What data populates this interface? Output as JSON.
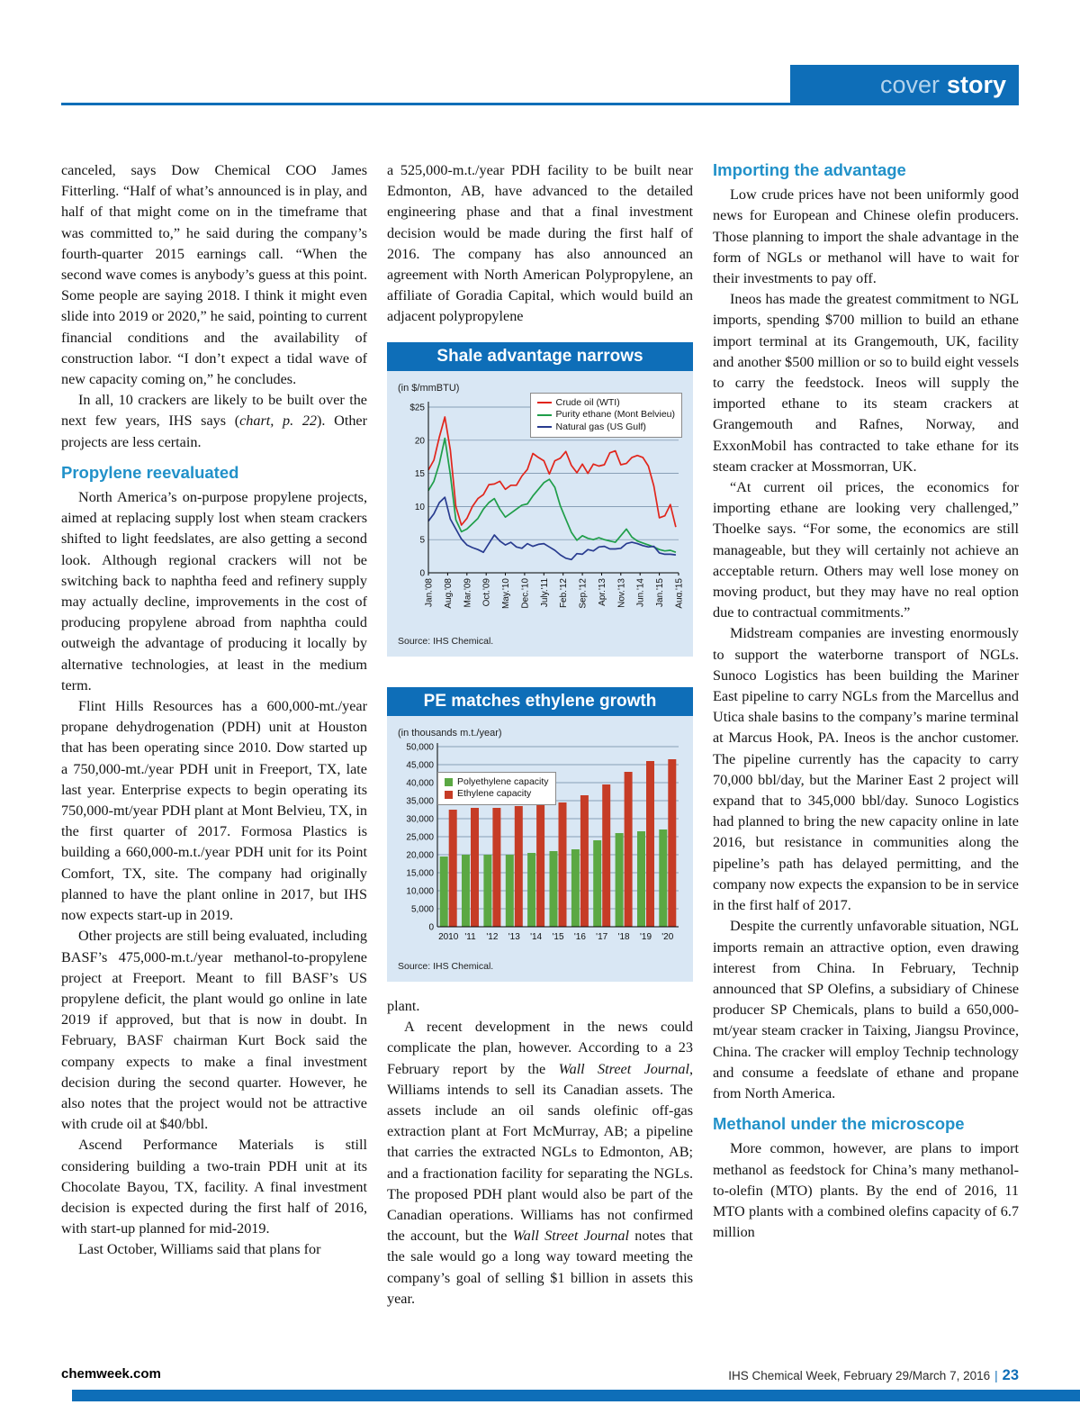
{
  "page": {
    "header": {
      "kicker_light": "cover",
      "kicker_bold": "story"
    },
    "footer": {
      "site": "chemweek.com",
      "issue": "IHS Chemical Week, February 29/March 7, 2016",
      "divider": "|",
      "page_number": "23"
    }
  },
  "colors": {
    "header_blue": "#0e6eb8",
    "heading_blue": "#2191c9",
    "chart_background": "#d9e7f4",
    "crude_red": "#e1251b",
    "ethane_green": "#1f9e49",
    "natgas_navy": "#283b8f",
    "bar_green": "#5ba843",
    "bar_red": "#c63c26"
  },
  "columns": {
    "left": {
      "blocks": [
        {
          "noindent": true,
          "t": "canceled, says Dow Chemical COO James Fitterling. “Half of what’s announced is in play, and half of that might come on in the timeframe that was committed to,” he said during the company’s fourth-quarter 2015 earnings call. “When the second wave comes is anybody’s guess at this point. Some people are saying 2018. I think it might even slide into 2019 or 2020,” he said, pointing to current financial conditions and the availability of construction labor. “I don’t expect a tidal wave of new capacity coming on,” he concludes."
        },
        {
          "seg": [
            {
              "t": "In all, 10 crackers are likely to be built over the next few years, IHS says ("
            },
            {
              "t": "chart, p. 22",
              "i": true
            },
            {
              "t": "). Other projects are less certain."
            }
          ]
        },
        {
          "h": "Propylene reevaluated"
        },
        {
          "t": "North America’s on-purpose propylene projects, aimed at replacing supply lost when steam crackers shifted to light feedslates, are also getting a second look. Although regional crackers will not be switching back to naphtha feed and refinery supply may actually decline, improvements in the cost of producing propylene abroad from naphtha could outweigh the advantage of producing it locally by alternative technologies, at least in the medium term."
        },
        {
          "t": "Flint Hills Resources has a 600,000-mt./year propane dehydrogenation (PDH) unit at Houston that has been operating since 2010. Dow started up a 750,000-mt./year PDH unit in Freeport, TX, late last year. Enterprise expects to begin operating its 750,000-mt/year PDH plant at Mont Belvieu, TX, in the first quarter of 2017. Formosa Plastics is building a 660,000-m.t./year PDH unit for its Point Comfort, TX, site. The company had originally planned to have the plant online in 2017, but IHS now expects start-up in 2019."
        },
        {
          "t": "Other projects are still being evaluated, including BASF’s 475,000-m.t./year methanol-to-propylene project at Freeport. Meant to fill BASF’s US propylene deficit, the plant would go online in late 2019 if approved, but that is now in doubt. In February, BASF chairman Kurt Bock said the company expects to make a final investment decision during the second quarter. However, he also notes that the project would not be attractive with crude oil at $40/bbl."
        },
        {
          "t": "Ascend Performance Materials is still considering building a two-train PDH unit at its Chocolate Bayou, TX, facility. A final investment decision is expected during the first half of 2016, with start-up planned for mid-2019."
        },
        {
          "t": "Last October, Williams said that plans for"
        }
      ]
    },
    "middle": {
      "before_blocks": [
        {
          "noindent": true,
          "t": "a 525,000-m.t./year PDH facility to be built near Edmonton, AB, have advanced to the detailed engineering phase and that a final investment decision would be made during the first half of 2016. The company has also announced an agreement with North American Polypropylene, an affiliate of Goradia Capital, which would build an adjacent polypropylene"
        }
      ],
      "after_blocks": [
        {
          "noindent": true,
          "t": "plant."
        },
        {
          "seg": [
            {
              "t": "A recent development in the news could complicate the plan, however. According to a 23 February report by the "
            },
            {
              "t": "Wall Street Journal",
              "i": true
            },
            {
              "t": ", Williams intends to sell its Canadian assets. The assets include an oil sands olefinic off-gas extraction plant at Fort McMurray, AB; a pipeline that carries the extracted NGLs to Edmonton, AB; and a fractionation facility for separating the NGLs. The proposed PDH plant would also be part of the Canadian operations. Williams has not confirmed the account, but the "
            },
            {
              "t": "Wall Street Journal",
              "i": true
            },
            {
              "t": " notes that the sale would go a long way toward meeting the company’s goal of selling $1 billion in assets this year."
            }
          ]
        }
      ]
    },
    "right": {
      "blocks": [
        {
          "h": "Importing the advantage"
        },
        {
          "t": "Low crude prices have not been uniformly good news for European and Chinese olefin producers. Those planning to import the shale advantage in the form of NGLs or methanol will have to wait for their investments to pay off."
        },
        {
          "t": "Ineos has made the greatest commitment to NGL imports, spending $700 million to build an ethane import terminal at its Grangemouth, UK, facility and another $500 million or so to build eight vessels to carry the feedstock. Ineos will supply the imported ethane to its steam crackers at Grangemouth and Rafnes, Norway, and ExxonMobil has contracted to take ethane for its steam cracker at Mossmorran, UK."
        },
        {
          "t": "“At current oil prices, the economics for importing ethane are looking very challenged,” Thoelke says. “For some, the economics are still manageable, but they will certainly not achieve an acceptable return. Others may well lose money on moving product, but they may have no real option due to contractual commitments.”"
        },
        {
          "t": "Midstream companies are investing enormously to support the waterborne transport of NGLs. Sunoco Logistics has been building the Mariner East pipeline to carry NGLs from the Marcellus and Utica shale basins to the company’s marine terminal at Marcus Hook, PA. Ineos is the anchor customer. The pipeline currently has the capacity to carry 70,000 bbl/day, but the Mariner East 2 project will expand that to 345,000 bbl/day. Sunoco Logistics had planned to bring the new capacity online in late 2016, but resistance in communities along the pipeline’s path has delayed permitting, and the company now expects the expansion to be in service in the first half of 2017."
        },
        {
          "t": "Despite the currently unfavorable situation, NGL imports remain an attractive option, even drawing interest from China. In February, Technip announced that SP Olefins, a subsidiary of Chinese producer SP Chemicals, plans to build a 650,000-mt/year steam cracker in Taixing, Jiangsu Province, China. The cracker will employ Technip technology and consume a feedslate of ethane and propane from North America."
        },
        {
          "h": "Methanol under the microscope"
        },
        {
          "t": "More common, however, are plans to import methanol as feedstock for China’s many methanol-to-olefin (MTO) plants. By the end of 2016, 11 MTO plants with a combined olefins capacity of 6.7 million"
        }
      ]
    }
  },
  "chart_data": [
    {
      "type": "line",
      "title": "Shale advantage narrows",
      "unit_label": "(in $/mmBTU)",
      "source": "Source: IHS Chemical.",
      "ylim": [
        0,
        25
      ],
      "grid": true,
      "legend_position": "top-right",
      "y_ticks": [
        "$25",
        "20",
        "15",
        "10",
        "5",
        "0"
      ],
      "x_ticks": [
        "Jan.'08",
        "Aug.'08",
        "Mar.'09",
        "Oct.'09",
        "May.'10",
        "Dec.'10",
        "July.'11",
        "Feb.'12",
        "Sep.'12",
        "Apr.'13",
        "Nov.'13",
        "Jun.'14",
        "Jan.'15",
        "Aug.'15"
      ],
      "x_note": "monthly series Jan 2008 - Aug 2015, values sampled every 2 months",
      "series": [
        {
          "name": "Crude oil (WTI)",
          "color": "#e1251b",
          "values": [
            15.5,
            17.0,
            20.5,
            23.5,
            18.5,
            10.0,
            7.2,
            8.2,
            10.0,
            11.2,
            11.8,
            13.3,
            13.4,
            13.8,
            12.6,
            13.2,
            13.2,
            14.6,
            15.6,
            18.0,
            17.4,
            16.9,
            14.9,
            16.9,
            17.3,
            18.3,
            16.2,
            15.1,
            16.4,
            15.0,
            16.4,
            16.1,
            16.3,
            18.1,
            18.4,
            16.3,
            16.5,
            17.4,
            17.7,
            17.4,
            16.1,
            13.1,
            8.3,
            8.6,
            10.3,
            6.9
          ]
        },
        {
          "name": "Purity ethane (Mont Belvieu)",
          "color": "#1f9e49",
          "values": [
            12.4,
            13.8,
            16.5,
            20.3,
            14.8,
            8.0,
            6.2,
            6.6,
            7.4,
            8.2,
            9.6,
            10.6,
            11.2,
            9.6,
            8.4,
            9.0,
            9.6,
            10.2,
            10.4,
            11.6,
            12.6,
            13.6,
            14.1,
            12.9,
            10.1,
            8.1,
            6.1,
            4.9,
            5.6,
            5.2,
            5.0,
            5.3,
            5.0,
            4.8,
            4.6,
            5.6,
            6.6,
            5.4,
            4.8,
            4.5,
            4.2,
            3.9,
            3.5,
            3.3,
            3.4,
            3.1
          ]
        },
        {
          "name": "Natural gas (US Gulf)",
          "color": "#283b8f",
          "values": [
            7.8,
            8.9,
            10.6,
            11.4,
            8.1,
            6.6,
            5.1,
            4.2,
            3.8,
            3.5,
            3.1,
            4.4,
            5.7,
            4.8,
            4.2,
            4.6,
            3.9,
            3.7,
            4.4,
            4.0,
            4.3,
            4.4,
            3.9,
            3.4,
            2.7,
            2.2,
            2.0,
            2.9,
            2.8,
            3.5,
            3.3,
            3.9,
            4.0,
            3.6,
            3.6,
            3.7,
            4.4,
            4.6,
            4.4,
            4.1,
            3.9,
            4.0,
            3.0,
            2.8,
            2.8,
            2.7
          ]
        }
      ]
    },
    {
      "type": "bar",
      "title": "PE matches ethylene growth",
      "unit_label": "(in thousands m.t./year)",
      "source": "Source: IHS Chemical.",
      "ylim": [
        0,
        50000
      ],
      "grid": true,
      "legend_position": "top-left",
      "categories": [
        "2010",
        "'11",
        "'12",
        "'13",
        "'14",
        "'15",
        "'16",
        "'17",
        "'18",
        "'19",
        "'20"
      ],
      "series": [
        {
          "name": "Polyethylene capacity",
          "color": "#5ba843",
          "values": [
            19500,
            20000,
            20000,
            20000,
            20500,
            21000,
            21500,
            24000,
            26000,
            26500,
            27000
          ]
        },
        {
          "name": "Ethylene capacity",
          "color": "#c63c26",
          "values": [
            32500,
            33000,
            33000,
            33500,
            34000,
            34500,
            36500,
            39500,
            43000,
            46000,
            46500
          ]
        }
      ]
    }
  ]
}
